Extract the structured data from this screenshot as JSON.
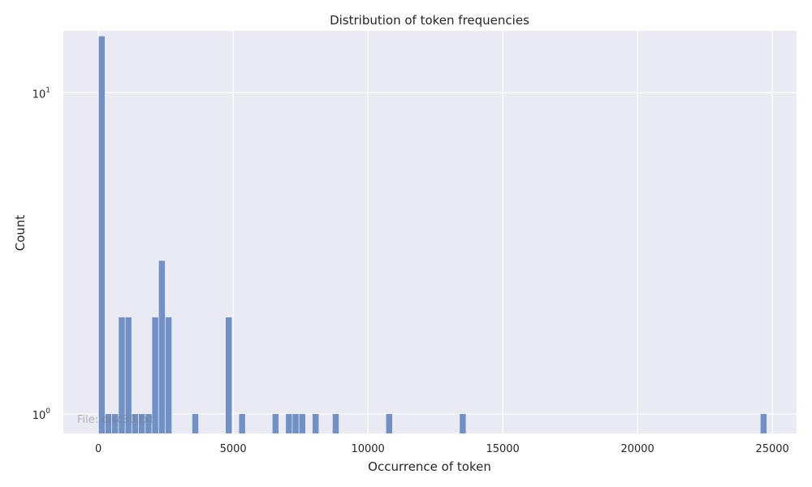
{
  "chart_data": {
    "type": "bar",
    "title": "Distribution of token frequencies",
    "xlabel": "Occurrence of token",
    "ylabel": "Count",
    "xlim": [
      -1300,
      25900
    ],
    "ylim": [
      0.87,
      15.6
    ],
    "y_scale": "log",
    "grid": true,
    "bar_color": "#7190c5",
    "plot_bg": "#eaeaf2",
    "watermark": "File: disc30.txt",
    "bin_width": 248,
    "x_ticks": [
      {
        "value": 0,
        "label": "0"
      },
      {
        "value": 5000,
        "label": "5000"
      },
      {
        "value": 10000,
        "label": "10000"
      },
      {
        "value": 15000,
        "label": "15000"
      },
      {
        "value": 20000,
        "label": "20000"
      },
      {
        "value": 25000,
        "label": "25000"
      }
    ],
    "y_ticks": [
      {
        "value": 1,
        "base": "10",
        "exp": "0"
      },
      {
        "value": 10,
        "base": "10",
        "exp": "1"
      }
    ],
    "bins": [
      {
        "x": 124,
        "count": 15
      },
      {
        "x": 372,
        "count": 1
      },
      {
        "x": 620,
        "count": 1
      },
      {
        "x": 868,
        "count": 2
      },
      {
        "x": 1116,
        "count": 2
      },
      {
        "x": 1364,
        "count": 1
      },
      {
        "x": 1612,
        "count": 1
      },
      {
        "x": 1860,
        "count": 1
      },
      {
        "x": 2108,
        "count": 2
      },
      {
        "x": 2356,
        "count": 3
      },
      {
        "x": 2604,
        "count": 2
      },
      {
        "x": 3596,
        "count": 1
      },
      {
        "x": 4836,
        "count": 2
      },
      {
        "x": 5332,
        "count": 1
      },
      {
        "x": 6572,
        "count": 1
      },
      {
        "x": 7068,
        "count": 1
      },
      {
        "x": 7316,
        "count": 1
      },
      {
        "x": 7564,
        "count": 1
      },
      {
        "x": 8060,
        "count": 1
      },
      {
        "x": 8804,
        "count": 1
      },
      {
        "x": 10788,
        "count": 1
      },
      {
        "x": 13516,
        "count": 1
      },
      {
        "x": 24676,
        "count": 1
      }
    ]
  }
}
